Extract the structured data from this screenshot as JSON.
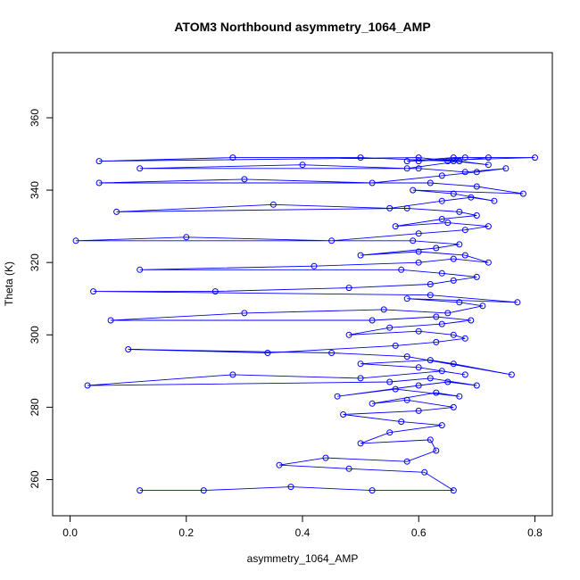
{
  "chart_data": {
    "type": "scatter",
    "style": "points-and-lines",
    "title": "ATOM3 Northbound asymmetry_1064_AMP",
    "xlabel": "asymmetry_1064_AMP",
    "ylabel": "Theta (K)",
    "xlim": [
      -0.03,
      0.83
    ],
    "ylim": [
      250,
      378
    ],
    "x_ticks": [
      0.0,
      0.2,
      0.4,
      0.6,
      0.8
    ],
    "y_ticks": [
      260,
      280,
      300,
      320,
      340,
      360
    ],
    "x_tick_labels": [
      "0.0",
      "0.2",
      "0.4",
      "0.6",
      "0.8"
    ],
    "y_tick_labels": [
      "260",
      "280",
      "300",
      "320",
      "340",
      "360"
    ],
    "grid": false,
    "legend": "none",
    "color": "#0000ff",
    "series": [
      {
        "x": [
          0.12,
          0.23,
          0.38,
          0.52,
          0.66,
          0.61,
          0.48,
          0.36,
          0.44,
          0.58,
          0.63,
          0.62,
          0.5,
          0.55,
          0.64,
          0.57,
          0.47,
          0.6,
          0.66,
          0.58,
          0.52,
          0.63,
          0.67,
          0.56,
          0.46,
          0.6,
          0.65,
          0.7,
          0.62,
          0.55,
          0.03,
          0.28,
          0.5,
          0.64,
          0.68,
          0.6,
          0.5,
          0.62,
          0.66,
          0.76,
          0.58,
          0.45,
          0.1,
          0.34,
          0.56,
          0.63,
          0.68,
          0.66,
          0.6,
          0.48,
          0.55,
          0.64,
          0.69,
          0.63,
          0.52,
          0.07,
          0.3,
          0.54,
          0.65,
          0.71,
          0.67,
          0.58,
          0.77,
          0.62,
          0.04,
          0.25,
          0.48,
          0.62,
          0.66,
          0.7,
          0.64,
          0.57,
          0.12,
          0.42,
          0.6,
          0.66,
          0.72,
          0.68,
          0.6,
          0.5,
          0.63,
          0.67,
          0.59,
          0.01,
          0.2,
          0.45,
          0.6,
          0.68,
          0.72,
          0.65,
          0.56,
          0.64,
          0.7,
          0.67,
          0.58,
          0.08,
          0.35,
          0.55,
          0.64,
          0.69,
          0.73,
          0.66,
          0.59,
          0.78,
          0.7,
          0.62,
          0.05,
          0.3,
          0.52,
          0.64,
          0.7,
          0.75,
          0.68,
          0.6,
          0.12,
          0.4,
          0.58,
          0.67,
          0.72,
          0.66,
          0.6,
          0.05,
          0.28,
          0.5,
          0.65,
          0.72,
          0.66,
          0.58,
          0.8,
          0.68,
          0.6
        ],
        "y": [
          257,
          257,
          258,
          257,
          257,
          262,
          263,
          264,
          266,
          265,
          268,
          271,
          270,
          273,
          275,
          276,
          278,
          279,
          280,
          282,
          281,
          284,
          283,
          285,
          283,
          286,
          287,
          286,
          288,
          287,
          286,
          289,
          288,
          290,
          289,
          291,
          292,
          293,
          292,
          289,
          294,
          295,
          296,
          295,
          297,
          298,
          299,
          300,
          301,
          300,
          302,
          303,
          304,
          305,
          304,
          304,
          306,
          307,
          306,
          308,
          309,
          310,
          309,
          311,
          312,
          312,
          313,
          314,
          315,
          316,
          317,
          318,
          318,
          319,
          320,
          321,
          320,
          322,
          323,
          322,
          324,
          325,
          326,
          326,
          327,
          326,
          328,
          329,
          330,
          331,
          330,
          332,
          333,
          334,
          335,
          334,
          336,
          335,
          337,
          338,
          337,
          339,
          340,
          339,
          341,
          342,
          342,
          343,
          342,
          344,
          345,
          346,
          345,
          346,
          346,
          347,
          346,
          348,
          347,
          348,
          349,
          348,
          349,
          349,
          348,
          349,
          349,
          348,
          349,
          349,
          348
        ]
      }
    ]
  }
}
